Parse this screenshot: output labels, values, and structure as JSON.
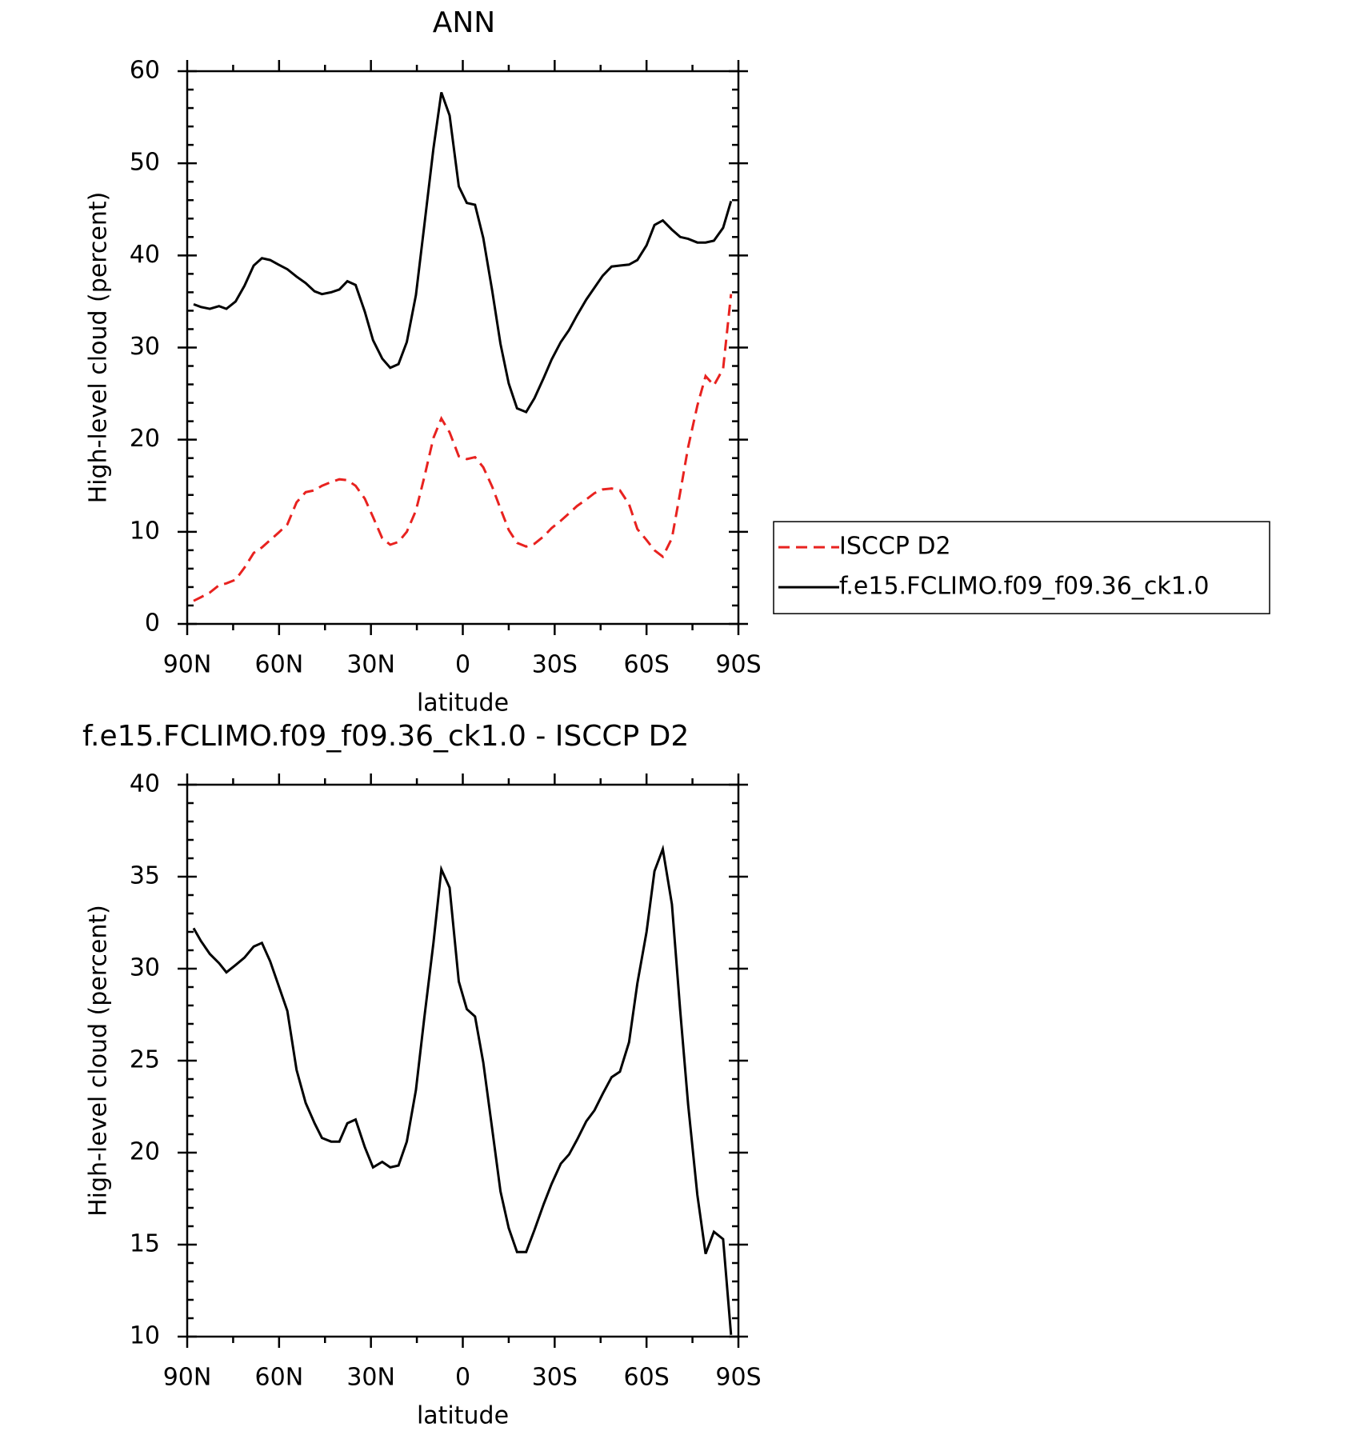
{
  "chart_data": [
    {
      "type": "line",
      "title": "ANN",
      "xlabel": "latitude",
      "ylabel": "High-level cloud (percent)",
      "x": [
        87.9,
        85.5,
        82.6,
        79.6,
        77.2,
        74.2,
        71.3,
        68.3,
        65.6,
        62.9,
        60.2,
        57.3,
        54.3,
        51.3,
        48.4,
        46.0,
        43.0,
        40.3,
        37.7,
        35.0,
        32.0,
        29.3,
        26.3,
        23.7,
        21.0,
        18.3,
        15.3,
        12.6,
        9.6,
        7.0,
        4.3,
        1.3,
        -1.3,
        -4.0,
        -6.7,
        -9.6,
        -12.3,
        -15.0,
        -17.7,
        -20.7,
        -23.4,
        -26.4,
        -29.0,
        -32.0,
        -34.7,
        -37.3,
        -40.3,
        -43.0,
        -45.7,
        -48.6,
        -51.3,
        -54.3,
        -57.0,
        -60.0,
        -62.6,
        -65.3,
        -68.3,
        -71.0,
        -73.6,
        -76.6,
        -79.3,
        -82.0,
        -85.0,
        -87.6
      ],
      "series": [
        {
          "name": "ISCCP D2",
          "color": "#e8221f",
          "style": "dashed",
          "values": [
            2.5,
            2.9,
            3.4,
            4.2,
            4.4,
            4.8,
            6.1,
            7.7,
            8.3,
            9.1,
            9.9,
            10.8,
            13.2,
            14.3,
            14.5,
            15.0,
            15.4,
            15.7,
            15.6,
            15.0,
            13.6,
            11.6,
            9.3,
            8.6,
            8.9,
            10.0,
            12.3,
            15.9,
            20.2,
            22.3,
            20.8,
            18.2,
            17.9,
            18.1,
            17.0,
            14.9,
            12.5,
            10.2,
            8.8,
            8.4,
            8.7,
            9.5,
            10.4,
            11.2,
            12.0,
            12.8,
            13.5,
            14.2,
            14.6,
            14.7,
            14.5,
            13.0,
            10.3,
            9.1,
            8.0,
            7.3,
            9.3,
            14.3,
            19.2,
            23.7,
            26.9,
            25.9,
            27.7,
            35.8
          ]
        },
        {
          "name": "f.e15.FCLIMO.f09_f09.36_ck1.0",
          "color": "#000000",
          "style": "solid",
          "values": [
            34.7,
            34.4,
            34.2,
            34.5,
            34.2,
            35.0,
            36.7,
            38.9,
            39.7,
            39.5,
            39.0,
            38.5,
            37.7,
            37.0,
            36.1,
            35.8,
            36.0,
            36.3,
            37.2,
            36.8,
            33.9,
            30.8,
            28.8,
            27.8,
            28.2,
            30.6,
            35.7,
            43.2,
            51.6,
            57.7,
            55.2,
            47.5,
            45.7,
            45.5,
            41.9,
            36.2,
            30.4,
            26.1,
            23.4,
            23.0,
            24.5,
            26.7,
            28.7,
            30.6,
            31.9,
            33.5,
            35.2,
            36.5,
            37.8,
            38.8,
            38.9,
            39.0,
            39.5,
            41.1,
            43.3,
            43.8,
            42.8,
            42.0,
            41.8,
            41.4,
            41.4,
            41.6,
            43.0,
            45.9
          ]
        }
      ],
      "xlim": [
        90,
        -90
      ],
      "xticks": [
        {
          "value": 90,
          "label": "90N"
        },
        {
          "value": 60,
          "label": "60N"
        },
        {
          "value": 30,
          "label": "30N"
        },
        0,
        {
          "value": -30,
          "label": "30S"
        },
        {
          "value": -60,
          "label": "60S"
        },
        {
          "value": -90,
          "label": "90S"
        }
      ],
      "ylim": [
        0,
        60
      ],
      "yticks": [
        0,
        10,
        20,
        30,
        40,
        50,
        60
      ],
      "legend": "right"
    },
    {
      "type": "line",
      "title": "f.e15.FCLIMO.f09_f09.36_ck1.0 - ISCCP D2",
      "xlabel": "latitude",
      "ylabel": "High-level cloud (percent)",
      "x": [
        87.9,
        85.5,
        82.6,
        79.6,
        77.2,
        74.2,
        71.3,
        68.3,
        65.6,
        62.9,
        60.2,
        57.3,
        54.3,
        51.3,
        48.4,
        46.0,
        43.0,
        40.3,
        37.7,
        35.0,
        32.0,
        29.3,
        26.3,
        23.7,
        21.0,
        18.3,
        15.3,
        12.6,
        9.6,
        7.0,
        4.3,
        1.3,
        -1.3,
        -4.0,
        -6.7,
        -9.6,
        -12.3,
        -15.0,
        -17.7,
        -20.7,
        -23.4,
        -26.4,
        -29.0,
        -32.0,
        -34.7,
        -37.3,
        -40.3,
        -43.0,
        -45.7,
        -48.6,
        -51.3,
        -54.3,
        -57.0,
        -60.0,
        -62.6,
        -65.3,
        -68.3,
        -71.0,
        -73.6,
        -76.6,
        -79.3,
        -82.0,
        -85.0,
        -87.6
      ],
      "values": [
        32.2,
        31.5,
        30.8,
        30.3,
        29.8,
        30.2,
        30.6,
        31.2,
        31.4,
        30.4,
        29.1,
        27.7,
        24.5,
        22.7,
        21.6,
        20.8,
        20.6,
        20.6,
        21.6,
        21.8,
        20.3,
        19.2,
        19.5,
        19.2,
        19.3,
        20.6,
        23.4,
        27.3,
        31.4,
        35.4,
        34.4,
        29.3,
        27.8,
        27.4,
        24.9,
        21.3,
        17.9,
        15.9,
        14.6,
        14.6,
        15.8,
        17.2,
        18.3,
        19.4,
        19.9,
        20.7,
        21.7,
        22.3,
        23.2,
        24.1,
        24.4,
        26.0,
        29.2,
        32.0,
        35.3,
        36.5,
        33.5,
        27.7,
        22.6,
        17.7,
        14.5,
        15.7,
        15.3,
        10.1
      ],
      "color": "#000000",
      "xlim": [
        90,
        -90
      ],
      "xticks": [
        {
          "value": 90,
          "label": "90N"
        },
        {
          "value": 60,
          "label": "60N"
        },
        {
          "value": 30,
          "label": "30N"
        },
        0,
        {
          "value": -30,
          "label": "30S"
        },
        {
          "value": -60,
          "label": "60S"
        },
        {
          "value": -90,
          "label": "90S"
        }
      ],
      "ylim": [
        10,
        40
      ],
      "yticks": [
        10,
        15,
        20,
        25,
        30,
        35,
        40
      ]
    }
  ]
}
